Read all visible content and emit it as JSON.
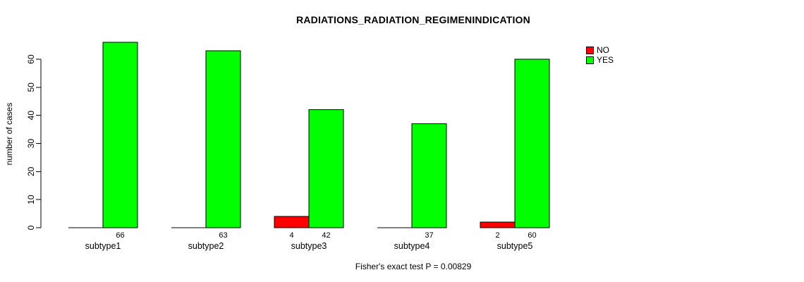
{
  "title": "RADIATIONS_RADIATION_REGIMENINDICATION",
  "footer": "Fisher's exact test P = 0.00829",
  "y_axis_title": "number of cases",
  "legend": {
    "items": [
      {
        "label": "NO",
        "color": "#ff0000"
      },
      {
        "label": "YES",
        "color": "#00ff00"
      }
    ]
  },
  "colors": {
    "no": "#ff0000",
    "yes": "#00ff00",
    "axis": "#000000",
    "background": "#ffffff"
  },
  "chart_data": {
    "type": "bar",
    "grouped": true,
    "title": "RADIATIONS_RADIATION_REGIMENINDICATION",
    "xlabel": "",
    "ylabel": "number of cases",
    "ylim": [
      0,
      60
    ],
    "yticks": [
      0,
      10,
      20,
      30,
      40,
      50,
      60
    ],
    "grid": false,
    "legend_position": "top-right",
    "annotation": "Fisher's exact test P = 0.00829",
    "categories": [
      "subtype1",
      "subtype2",
      "subtype3",
      "subtype4",
      "subtype5"
    ],
    "series": [
      {
        "name": "NO",
        "color": "#ff0000",
        "values": [
          0,
          0,
          4,
          0,
          2
        ],
        "value_labels": [
          "",
          "",
          "4",
          "",
          "2"
        ]
      },
      {
        "name": "YES",
        "color": "#00ff00",
        "values": [
          66,
          63,
          42,
          37,
          60
        ],
        "value_labels": [
          "66",
          "63",
          "42",
          "37",
          "60"
        ]
      }
    ]
  }
}
